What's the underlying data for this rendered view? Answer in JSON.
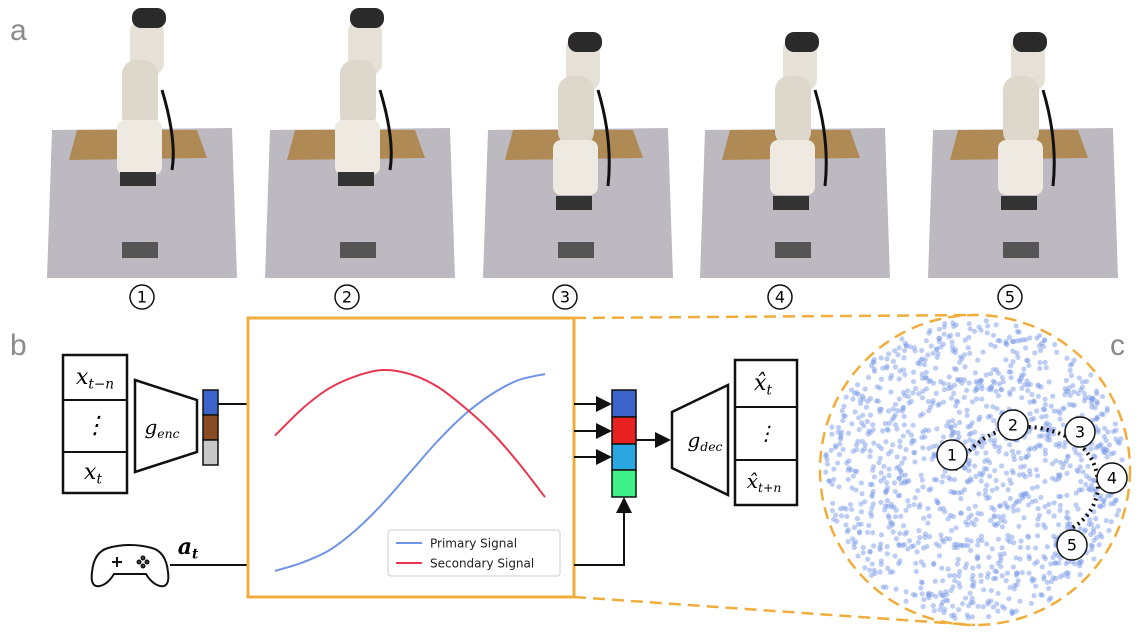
{
  "panel_labels": [
    "a",
    "b",
    "c"
  ],
  "frames": [
    "1",
    "2",
    "3",
    "4",
    "5"
  ],
  "encoder_inputs": [
    {
      "base": "x",
      "sub": "t−n"
    },
    {
      "base": "⋮"
    },
    {
      "base": "x",
      "sub": "t"
    }
  ],
  "encoder": {
    "base": "g",
    "sub": "enc"
  },
  "action": {
    "base": "a",
    "sub": "t"
  },
  "decoder": {
    "base": "g",
    "sub": "dec"
  },
  "decoder_outputs": [
    {
      "base": "x̂",
      "sub": "t"
    },
    {
      "base": "⋮"
    },
    {
      "base": "x̂",
      "sub": "t+n"
    }
  ],
  "latent_points": [
    "1",
    "2",
    "3",
    "4",
    "5"
  ],
  "chart_data": {
    "type": "line",
    "x": [
      0,
      0.1,
      0.2,
      0.3,
      0.4,
      0.5,
      0.6,
      0.7,
      0.8,
      0.9,
      1
    ],
    "xlim": [
      0,
      1
    ],
    "ylim": [
      0,
      1
    ],
    "series": [
      {
        "name": "Primary Signal",
        "color": "#6f93e8",
        "values": [
          0.02,
          0.06,
          0.12,
          0.22,
          0.35,
          0.5,
          0.65,
          0.78,
          0.88,
          0.95,
          0.98
        ]
      },
      {
        "name": "Secondary Signal",
        "color": "#e8364f",
        "values": [
          0.68,
          0.81,
          0.91,
          0.97,
          1.0,
          0.98,
          0.92,
          0.82,
          0.7,
          0.55,
          0.38
        ]
      }
    ],
    "legend": "lower right"
  }
}
